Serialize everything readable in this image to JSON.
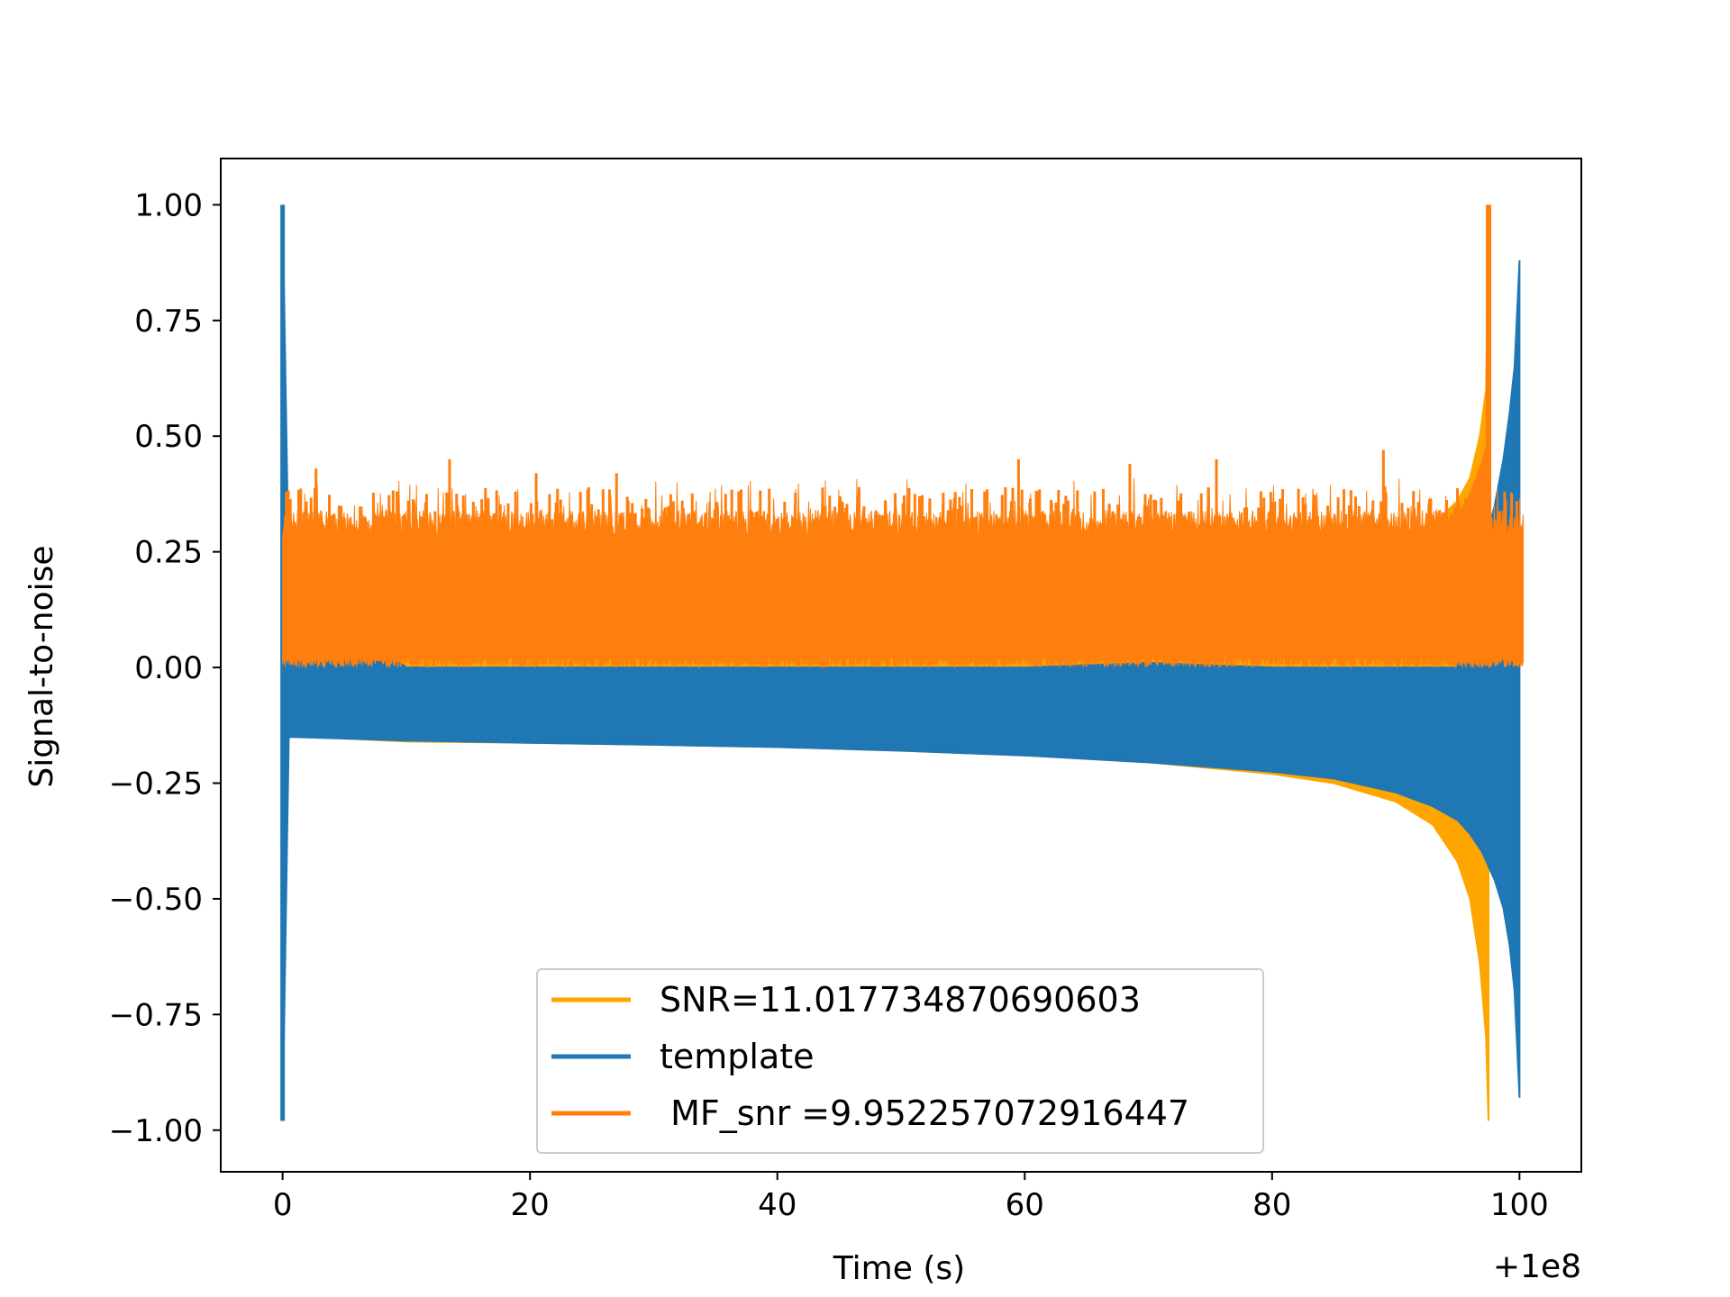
{
  "chart_data": {
    "type": "line",
    "xlabel": "Time (s)",
    "ylabel": "Signal-to-noise",
    "x_offset_label": "+1e8",
    "xlim": [
      -5,
      105
    ],
    "ylim": [
      -1.09,
      1.1
    ],
    "x_ticks": [
      0,
      20,
      40,
      60,
      80,
      100
    ],
    "x_tick_labels": [
      "0",
      "20",
      "40",
      "60",
      "80",
      "100"
    ],
    "y_ticks": [
      1.0,
      0.75,
      0.5,
      0.25,
      0.0,
      -0.25,
      -0.5,
      -0.75,
      -1.0
    ],
    "y_tick_labels": [
      "1.00",
      "0.75",
      "0.50",
      "0.25",
      "0.00",
      "−0.25",
      "−0.50",
      "−0.75",
      "−1.00"
    ],
    "grid": false,
    "legend_position": "lower center",
    "colors": {
      "snr": "#ffa500",
      "template": "#1f77b4",
      "mf_snr": "#ff7f0e"
    },
    "series": [
      {
        "name": "SNR=11.017734870690603",
        "color": "#ffa500",
        "shape": "band",
        "x": [
          0.3,
          2.3,
          2.3,
          10,
          20,
          30,
          40,
          50,
          60,
          70,
          80,
          85,
          90,
          93,
          95,
          96,
          96.8,
          97.3,
          97.5
        ],
        "upper": [
          0.0,
          0.0,
          0.27,
          0.27,
          0.27,
          0.27,
          0.27,
          0.27,
          0.27,
          0.27,
          0.28,
          0.28,
          0.29,
          0.31,
          0.36,
          0.41,
          0.5,
          0.6,
          1.0
        ],
        "lower": [
          -0.15,
          -0.15,
          -0.15,
          -0.16,
          -0.163,
          -0.167,
          -0.172,
          -0.18,
          -0.19,
          -0.205,
          -0.23,
          -0.25,
          -0.29,
          -0.34,
          -0.42,
          -0.5,
          -0.64,
          -0.8,
          -0.98
        ]
      },
      {
        "name": "template",
        "color": "#1f77b4",
        "shape": "band",
        "x": [
          0,
          0.5,
          10,
          20,
          30,
          40,
          50,
          60,
          70,
          80,
          85,
          90,
          93,
          95,
          96,
          97,
          98,
          98.7,
          99.2,
          99.6,
          100
        ],
        "upper": [
          1.0,
          0.2,
          0.0,
          0.0,
          0.0,
          0.0,
          0.0,
          0.0,
          0.01,
          0.0,
          0.0,
          0.0,
          0.0,
          0.0,
          0.2,
          0.25,
          0.35,
          0.45,
          0.55,
          0.65,
          0.88
        ],
        "lower": [
          -0.98,
          -0.15,
          -0.158,
          -0.163,
          -0.167,
          -0.172,
          -0.18,
          -0.19,
          -0.205,
          -0.225,
          -0.24,
          -0.27,
          -0.3,
          -0.33,
          -0.36,
          -0.4,
          -0.46,
          -0.52,
          -0.6,
          -0.7,
          -0.93
        ]
      },
      {
        "name": " MF_snr =9.952257072916447",
        "color": "#ff7f0e",
        "shape": "noise",
        "x_range": [
          0,
          100.3
        ],
        "baseline_low": 0.0,
        "typical_high": 0.3,
        "peak_x": 97.5,
        "peak_value": 1.0,
        "spike_values": [
          {
            "x": 0.3,
            "y": 0.38
          },
          {
            "x": 2.7,
            "y": 0.43
          },
          {
            "x": 13.5,
            "y": 0.45
          },
          {
            "x": 20.5,
            "y": 0.42
          },
          {
            "x": 27,
            "y": 0.42
          },
          {
            "x": 59.5,
            "y": 0.45
          },
          {
            "x": 68.5,
            "y": 0.44
          },
          {
            "x": 75.5,
            "y": 0.45
          },
          {
            "x": 89,
            "y": 0.47
          }
        ]
      }
    ]
  }
}
